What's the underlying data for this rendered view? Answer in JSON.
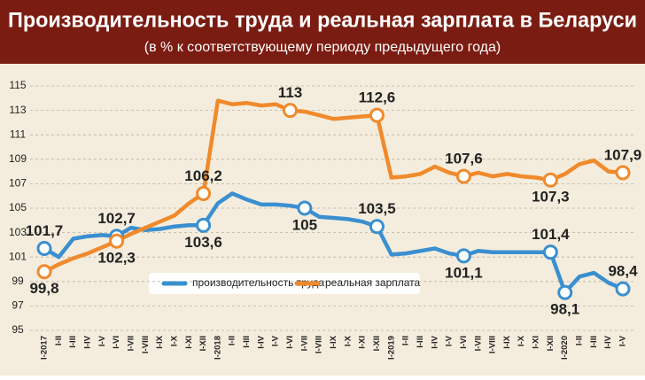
{
  "chart_data": {
    "type": "line",
    "title": "Производительность труда и реальная зарплата в Беларуси",
    "subtitle": "(в % к соответствующему периоду предыдущего года)",
    "categories": [
      "I-2017",
      "I-II",
      "I-III",
      "I-IV",
      "I-V",
      "I-VI",
      "I-VII",
      "I-VIII",
      "I-IX",
      "I-X",
      "I-XI",
      "I-XII",
      "I-2018",
      "I-II",
      "I-III",
      "I-IV",
      "I-V",
      "I-VI",
      "I-VII",
      "I-VIII",
      "I-IX",
      "I-X",
      "I-XI",
      "I-XII",
      "I-2019",
      "I-II",
      "I-III",
      "I-IV",
      "I-V",
      "I-VI",
      "I-VII",
      "I-VIII",
      "I-IX",
      "I-X",
      "I-XI",
      "I-XII",
      "I-2020",
      "I-II",
      "I-III",
      "I-IV",
      "I-V"
    ],
    "ylim": [
      95,
      115
    ],
    "yticks": [
      95,
      97,
      99,
      101,
      103,
      105,
      107,
      109,
      111,
      113,
      115
    ],
    "grid": true,
    "series": [
      {
        "name": "производительность труда",
        "color": "#3a8fd0",
        "values": [
          101.7,
          101.0,
          102.5,
          102.7,
          102.8,
          102.7,
          103.4,
          103.2,
          103.3,
          103.5,
          103.6,
          103.6,
          105.4,
          106.2,
          105.7,
          105.3,
          105.3,
          105.2,
          105.0,
          104.3,
          104.2,
          104.1,
          103.9,
          103.5,
          101.2,
          101.3,
          101.5,
          101.7,
          101.3,
          101.1,
          101.5,
          101.4,
          101.4,
          101.4,
          101.4,
          101.4,
          98.1,
          99.4,
          99.7,
          98.9,
          98.4
        ],
        "value_labels": [
          "101,7",
          null,
          null,
          null,
          null,
          "102,7",
          null,
          null,
          null,
          null,
          null,
          "103,6",
          null,
          null,
          null,
          null,
          null,
          null,
          "105",
          null,
          null,
          null,
          null,
          "103,5",
          null,
          null,
          null,
          null,
          null,
          "101,1",
          null,
          null,
          null,
          null,
          null,
          "101,4",
          "98,1",
          null,
          null,
          null,
          "98,4"
        ]
      },
      {
        "name": "реальная зарплата",
        "color": "#f08a2c",
        "values": [
          99.8,
          100.4,
          100.9,
          101.3,
          101.8,
          102.3,
          102.9,
          103.4,
          103.9,
          104.4,
          105.4,
          106.2,
          113.8,
          113.5,
          113.6,
          113.4,
          113.5,
          113.0,
          112.9,
          112.6,
          112.3,
          112.4,
          112.5,
          112.6,
          107.5,
          107.6,
          107.8,
          108.4,
          107.9,
          107.6,
          107.9,
          107.6,
          107.8,
          107.6,
          107.5,
          107.3,
          107.8,
          108.6,
          108.9,
          108.0,
          107.9
        ],
        "value_labels": [
          "99,8",
          null,
          null,
          null,
          null,
          "102,3",
          null,
          null,
          null,
          null,
          null,
          "106,2",
          null,
          null,
          null,
          null,
          null,
          "113",
          null,
          null,
          null,
          null,
          null,
          "112,6",
          null,
          null,
          null,
          null,
          null,
          "107,6",
          null,
          null,
          null,
          null,
          null,
          "107,3",
          null,
          null,
          null,
          null,
          "107,9"
        ]
      }
    ]
  }
}
